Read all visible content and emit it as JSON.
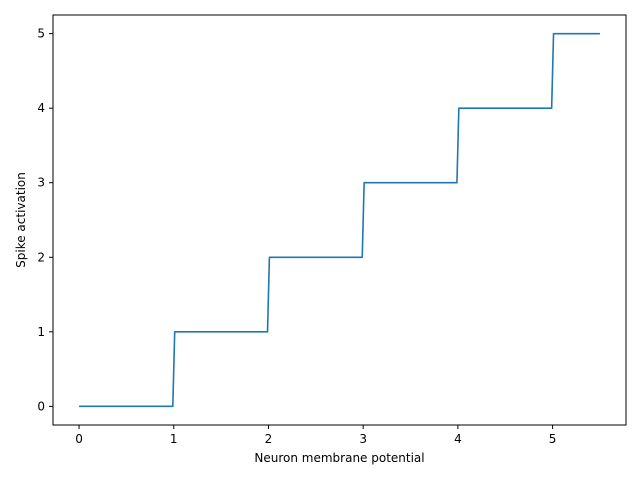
{
  "chart_data": {
    "type": "line",
    "title": "",
    "xlabel": "Neuron membrane potential",
    "ylabel": "Spike activation",
    "xlim": [
      -0.275,
      5.775
    ],
    "ylim": [
      -0.25,
      5.25
    ],
    "xticks": [
      0,
      1,
      2,
      3,
      4,
      5
    ],
    "xtick_labels": [
      "0",
      "1",
      "2",
      "3",
      "4",
      "5"
    ],
    "yticks": [
      0,
      1,
      2,
      3,
      4,
      5
    ],
    "ytick_labels": [
      "0",
      "1",
      "2",
      "3",
      "4",
      "5"
    ],
    "grid": false,
    "series": [
      {
        "color": "#1f77b4",
        "x": [
          0,
          0.99,
          1.01,
          1.99,
          2.01,
          2.99,
          3.01,
          3.99,
          4.01,
          4.99,
          5.01,
          5.5
        ],
        "y": [
          0,
          0,
          1,
          1,
          2,
          2,
          3,
          3,
          4,
          4,
          5,
          5
        ]
      }
    ]
  }
}
